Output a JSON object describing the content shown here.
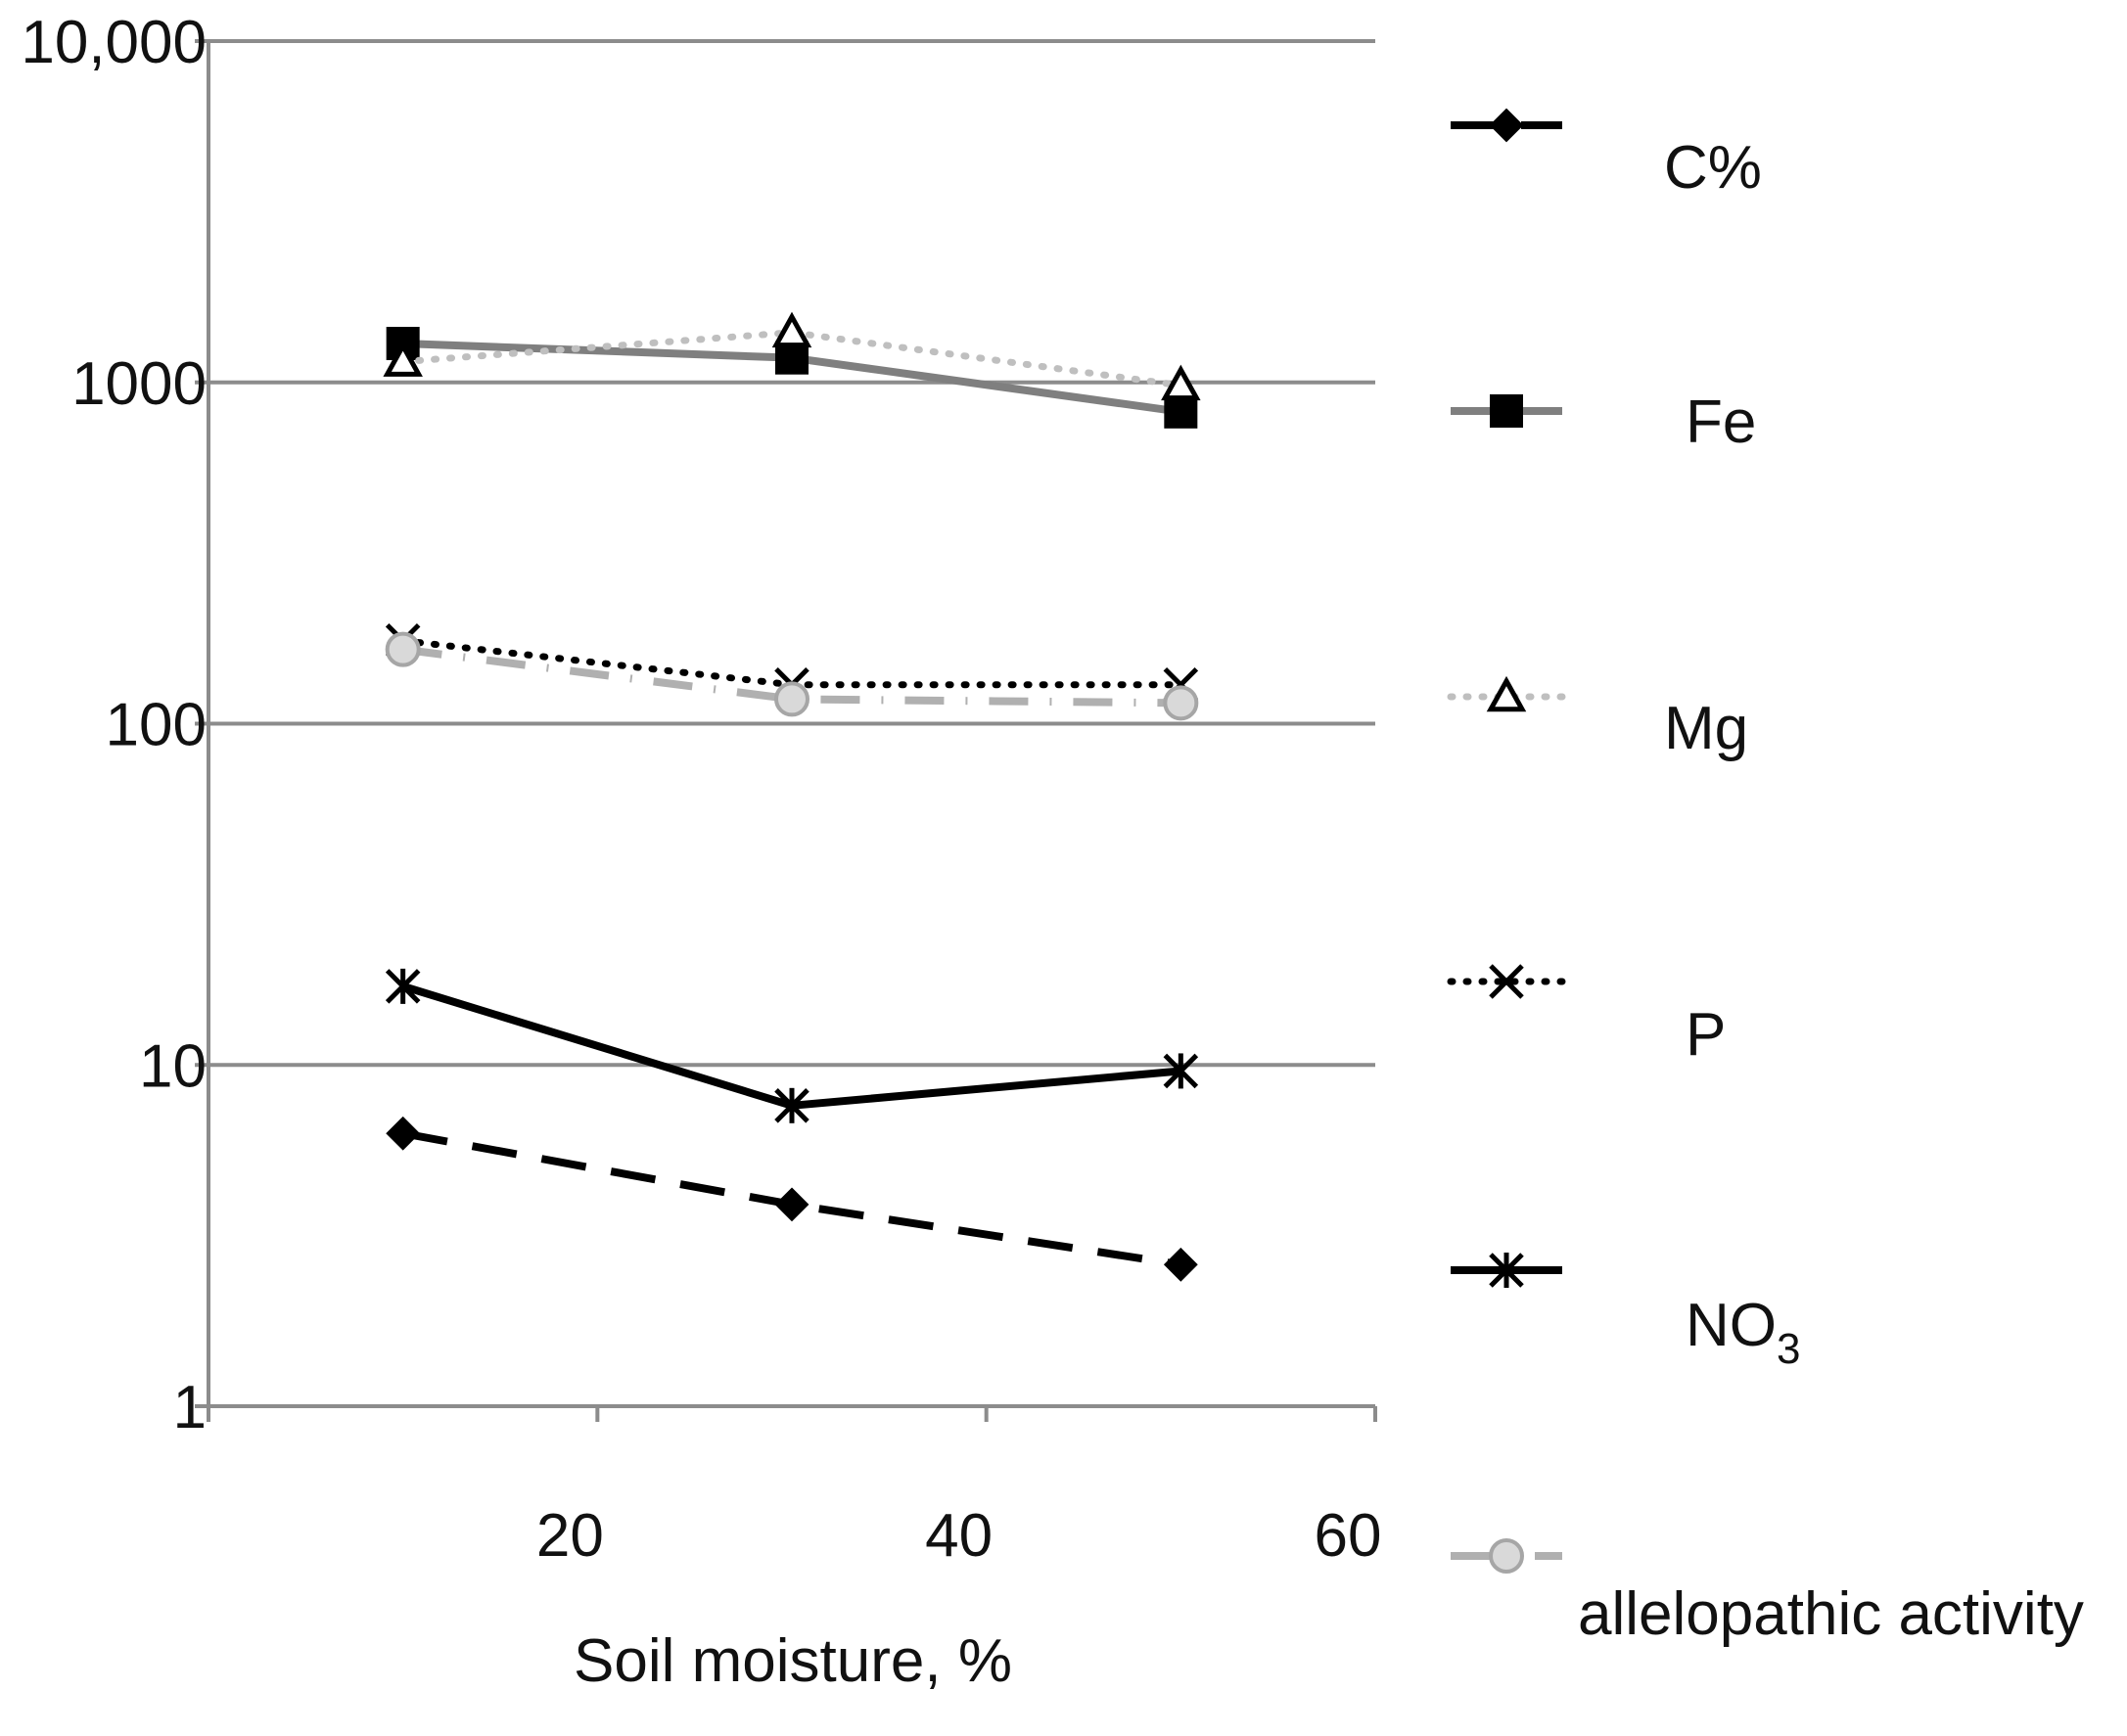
{
  "chart_data": {
    "type": "line",
    "title": "",
    "xlabel": "Soil moisture, %",
    "ylabel": "",
    "xlim": [
      0,
      60
    ],
    "ylim": [
      1,
      10000
    ],
    "yscale": "log",
    "grid": true,
    "legend_position": "right",
    "x_ticks": [
      {
        "value": 20,
        "label": "20"
      },
      {
        "value": 40,
        "label": "40"
      },
      {
        "value": 60,
        "label": "60"
      }
    ],
    "y_ticks": [
      {
        "value": 1,
        "label": "1"
      },
      {
        "value": 10,
        "label": "10"
      },
      {
        "value": 100,
        "label": "100"
      },
      {
        "value": 1000,
        "label": "1000"
      },
      {
        "value": 10000,
        "label": "10,000"
      }
    ],
    "x": [
      10,
      30,
      50
    ],
    "series": [
      {
        "name": "C%",
        "label_main": "C%",
        "label_sub": "",
        "values": [
          6.3,
          3.9,
          2.6
        ],
        "color": "#000000",
        "marker": "diamond",
        "dash": "long-dash"
      },
      {
        "name": "Fe",
        "label_main": "Fe",
        "label_sub": "",
        "values": [
          1300,
          1180,
          820
        ],
        "color": "#7f7f7f",
        "marker": "square",
        "dash": "solid"
      },
      {
        "name": "Mg",
        "label_main": "Mg",
        "label_sub": "",
        "values": [
          1150,
          1400,
          980
        ],
        "color": "#bfbfbf",
        "marker": "triangle",
        "dash": "dotted"
      },
      {
        "name": "P",
        "label_main": "P",
        "label_sub": "",
        "values": [
          175,
          130,
          130
        ],
        "color": "#000000",
        "marker": "x",
        "dash": "dotted"
      },
      {
        "name": "NO3",
        "label_main": "NO",
        "label_sub": "3",
        "values": [
          17,
          7.6,
          9.6
        ],
        "color": "#000000",
        "marker": "star",
        "dash": "solid"
      },
      {
        "name": "allelopathic activity",
        "label_main": "allelopathic activity",
        "label_sub": "",
        "values": [
          165,
          118,
          115
        ],
        "color": "#b0b0b0",
        "marker": "circle",
        "dash": "dash-dot"
      }
    ]
  }
}
